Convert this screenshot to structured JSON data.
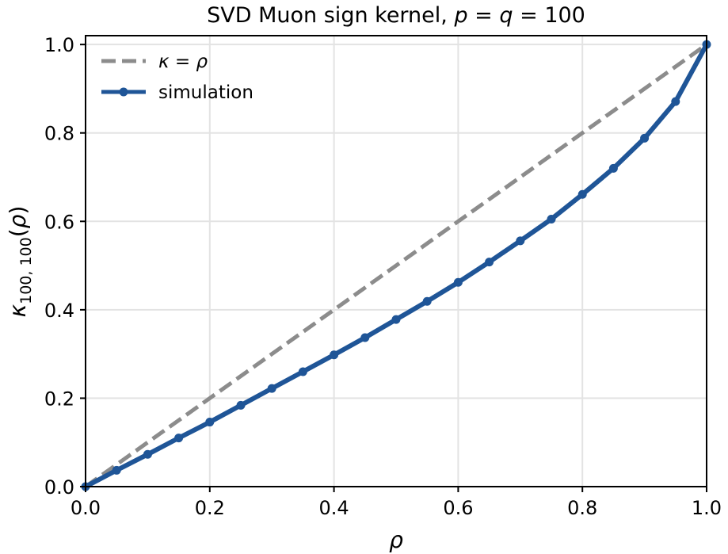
{
  "chart_data": {
    "type": "line",
    "title": "SVD Muon sign kernel, p = q = 100",
    "xlabel": "ρ",
    "ylabel": "κ100,100(ρ)",
    "xlim": [
      0.0,
      1.0
    ],
    "ylim": [
      0.0,
      1.02
    ],
    "grid": true,
    "legend_placement": "top-left",
    "xticks": [
      "0.0",
      "0.2",
      "0.4",
      "0.6",
      "0.8",
      "1.0"
    ],
    "yticks": [
      "0.0",
      "0.2",
      "0.4",
      "0.6",
      "0.8",
      "1.0"
    ],
    "series": [
      {
        "name": "κ = ρ",
        "style": "dashed",
        "color": "#8c8c8c",
        "x": [
          0.0,
          1.0
        ],
        "y": [
          0.0,
          1.0
        ]
      },
      {
        "name": "simulation",
        "style": "solid-markers",
        "color": "#1f5597",
        "x": [
          0.0,
          0.05,
          0.1,
          0.15,
          0.2,
          0.25,
          0.3,
          0.35,
          0.4,
          0.45,
          0.5,
          0.55,
          0.6,
          0.65,
          0.7,
          0.75,
          0.8,
          0.85,
          0.9,
          0.95,
          1.0
        ],
        "y": [
          0.0,
          0.037,
          0.073,
          0.11,
          0.146,
          0.184,
          0.222,
          0.26,
          0.298,
          0.337,
          0.378,
          0.419,
          0.462,
          0.508,
          0.556,
          0.605,
          0.661,
          0.72,
          0.788,
          0.871,
          1.0
        ]
      }
    ]
  }
}
